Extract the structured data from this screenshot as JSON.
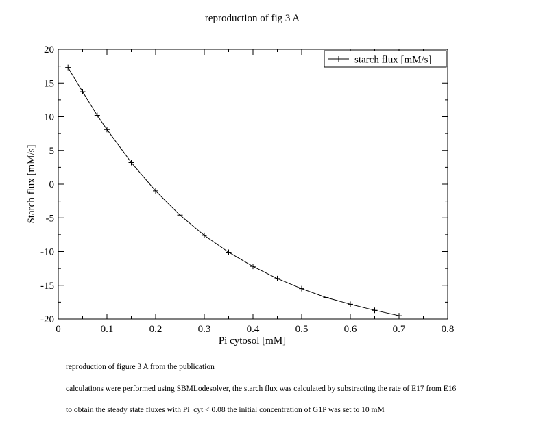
{
  "chart_data": {
    "type": "line",
    "title": "reproduction of fig 3 A",
    "xlabel": "Pi cytosol [mM]",
    "ylabel": "Starch flux [mM/s]",
    "xlim": [
      0,
      0.8
    ],
    "ylim": [
      -20,
      20
    ],
    "xticks": [
      "0",
      "0.1",
      "0.2",
      "0.3",
      "0.4",
      "0.5",
      "0.6",
      "0.7",
      "0.8"
    ],
    "yticks": [
      "20",
      "15",
      "10",
      "5",
      "0",
      "-5",
      "-10",
      "-15",
      "-20"
    ],
    "grid": false,
    "legend_position": "top-right",
    "marker": "plus",
    "series": [
      {
        "name": "starch flux [mM/s]",
        "color": "#000000",
        "x": [
          0.02,
          0.05,
          0.08,
          0.1,
          0.15,
          0.2,
          0.25,
          0.3,
          0.35,
          0.4,
          0.45,
          0.5,
          0.55,
          0.6,
          0.65,
          0.7
        ],
        "y": [
          17.3,
          13.7,
          10.2,
          8.1,
          3.2,
          -1.0,
          -4.6,
          -7.6,
          -10.1,
          -12.2,
          -14.0,
          -15.5,
          -16.8,
          -17.8,
          -18.7,
          -19.5
        ]
      }
    ]
  },
  "caption": {
    "lines": [
      "reproduction of figure 3 A from the publication",
      "calculations were performed using SBMLodesolver, the starch flux was calculated by substracting the rate of E17 from E16",
      "to obtain the steady state fluxes with Pi_cyt < 0.08 the initial concentration of G1P was set to 10 mM"
    ]
  }
}
